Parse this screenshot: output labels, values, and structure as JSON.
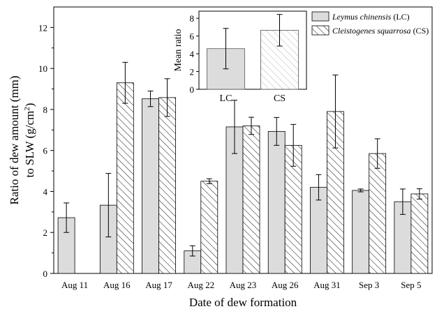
{
  "chart_data": {
    "type": "bar",
    "xlabel": "Date of dew formation",
    "ylabel_line1": "Ratio of dew amount (mm)",
    "ylabel_line2": "to SLW (g/cm",
    "ylabel_sup": "2",
    "ylabel_end": ")",
    "ylim": [
      0,
      13
    ],
    "yticks": [
      "0",
      "2",
      "4",
      "6",
      "8",
      "10",
      "12"
    ],
    "categories": [
      "Aug 11",
      "Aug 16",
      "Aug 17",
      "Aug 22",
      "Aug 23",
      "Aug 26",
      "Aug 31",
      "Sep 3",
      "Sep 5"
    ],
    "series": [
      {
        "name_italic": "Leymus chinensis",
        "name_suffix": " (LC)",
        "fill": "#dcdcdc",
        "pattern": "solid",
        "values": [
          2.72,
          3.33,
          8.52,
          1.1,
          7.15,
          6.93,
          4.2,
          4.05,
          3.5
        ],
        "errors": [
          0.72,
          1.55,
          0.38,
          0.25,
          1.3,
          0.68,
          0.62,
          0.07,
          0.62
        ]
      },
      {
        "name_italic": "Cleistogenes squarrosa",
        "name_suffix": " (CS)",
        "fill": "#ffffff",
        "pattern": "hatched",
        "values": [
          null,
          9.3,
          8.58,
          4.5,
          7.2,
          6.25,
          7.9,
          5.85,
          3.88
        ],
        "errors": [
          null,
          1.0,
          0.92,
          0.12,
          0.42,
          1.02,
          1.78,
          0.72,
          0.25
        ]
      }
    ],
    "legend_position": "top-right",
    "inset": {
      "ylabel": "Mean ratio",
      "ylim": [
        0,
        8.8
      ],
      "yticks": [
        "0",
        "2",
        "4",
        "6",
        "8"
      ],
      "categories": [
        "LC",
        "CS"
      ],
      "values": [
        4.58,
        6.65
      ],
      "errors": [
        2.28,
        1.78
      ]
    }
  }
}
